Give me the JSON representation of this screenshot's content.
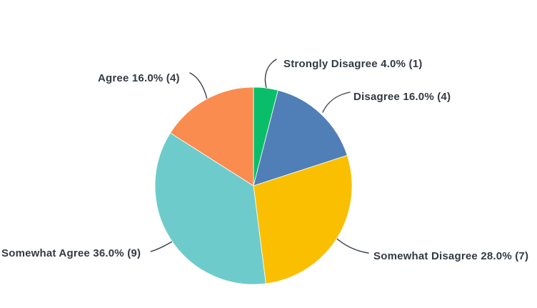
{
  "chart_data": {
    "type": "pie",
    "title": "",
    "legend_position": "none",
    "start_angle_deg": 0,
    "direction": "clockwise",
    "label_style": "callout-leader-lines",
    "background_color": "#ffffff",
    "text_color": "#333a42",
    "leader_line_color": "#3a4149",
    "categories": [
      "Strongly Disagree",
      "Disagree",
      "Somewhat Disagree",
      "Somewhat Agree",
      "Agree"
    ],
    "values": [
      4.0,
      16.0,
      28.0,
      36.0,
      16.0
    ],
    "counts": [
      1,
      4,
      7,
      9,
      4
    ],
    "value_unit": "%",
    "total_responses": 25,
    "slices": [
      {
        "label": "Strongly Disagree",
        "percent": 4.0,
        "count": 1,
        "color": "#0abe69",
        "display": "Strongly Disagree 4.0% (1)"
      },
      {
        "label": "Disagree",
        "percent": 16.0,
        "count": 4,
        "color": "#507fb8",
        "display": "Disagree 16.0% (4)"
      },
      {
        "label": "Somewhat Disagree",
        "percent": 28.0,
        "count": 7,
        "color": "#fabf00",
        "display": "Somewhat Disagree 28.0% (7)"
      },
      {
        "label": "Somewhat Agree",
        "percent": 36.0,
        "count": 9,
        "color": "#6ecbcb",
        "display": "Somewhat Agree 36.0% (9)"
      },
      {
        "label": "Agree",
        "percent": 16.0,
        "count": 4,
        "color": "#fa8c50",
        "display": "Agree 16.0% (4)"
      }
    ]
  }
}
